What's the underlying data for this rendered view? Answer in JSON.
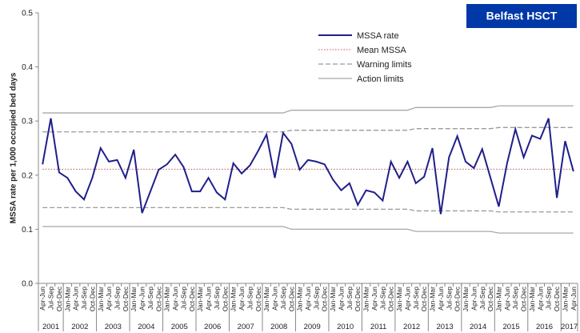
{
  "chart_data": {
    "type": "line",
    "badge": "Belfast HSCT",
    "y_label": "MSSA rate per 1,000 occupied bed days",
    "ylim": [
      0,
      0.5
    ],
    "yticks": [
      {
        "value": 0,
        "label": "0.0"
      },
      {
        "value": 0.1,
        "label": "0.1"
      },
      {
        "value": 0.2,
        "label": "0.2"
      },
      {
        "value": 0.3,
        "label": "0.3"
      },
      {
        "value": 0.4,
        "label": "0.4"
      },
      {
        "value": 0.5,
        "label": "0.5"
      }
    ],
    "categories": [
      "Apr-Jun",
      "Jul-Sep",
      "Oct-Dec",
      "Jan-Mar",
      "Apr-Jun",
      "Jul-Sep",
      "Oct-Dec",
      "Jan-Mar",
      "Apr-Jun",
      "Jul-Sep",
      "Oct-Dec",
      "Jan-Mar",
      "Apr-Jun",
      "Jul-Sep",
      "Oct-Dec",
      "Jan-Mar",
      "Apr-Jun",
      "Jul-Sep",
      "Oct-Dec",
      "Jan-Mar",
      "Apr-Jun",
      "Jul-Sep",
      "Oct-Dec",
      "Jan-Mar",
      "Apr-Jun",
      "Jul-Sep",
      "Oct-Dec",
      "Jan-Mar",
      "Apr-Jun",
      "Jul-Sep",
      "Oct-Dec",
      "Jan-Mar",
      "Apr-Jun",
      "Jul-Sep",
      "Oct-Dec",
      "Jan-Mar",
      "Apr-Jun",
      "Jul-Sep",
      "Oct-Dec",
      "Jan-Mar",
      "Apr-Jun",
      "Jul-Sep",
      "Oct-Dec",
      "Jan-Mar",
      "Apr-Jun",
      "Jul-Sep",
      "Oct-Dec",
      "Jan-Mar",
      "Apr-Jun",
      "Jul-Sep",
      "Oct-Dec",
      "Jan-Mar",
      "Apr-Jun",
      "Jul-Sep",
      "Oct-Dec",
      "Jan-Mar",
      "Apr-Jun",
      "Jul-Sep",
      "Oct-Dec",
      "Jan-Mar",
      "Apr-Jun",
      "Jul-Sep",
      "Oct-Dec",
      "Jan-Mar",
      "Apr-Jun"
    ],
    "years": [
      "2001",
      "2002",
      "2003",
      "2004",
      "2005",
      "2006",
      "2007",
      "2008",
      "2009",
      "2010",
      "2011",
      "2012",
      "2013",
      "2014",
      "2015",
      "2016",
      "2017"
    ],
    "series": [
      {
        "name": "MSSA rate",
        "color": "#1f1f8a",
        "dash": "solid",
        "width": 2,
        "values": [
          0.22,
          0.305,
          0.205,
          0.195,
          0.17,
          0.155,
          0.195,
          0.25,
          0.225,
          0.228,
          0.195,
          0.247,
          0.13,
          0.17,
          0.21,
          0.22,
          0.238,
          0.215,
          0.17,
          0.17,
          0.195,
          0.168,
          0.155,
          0.222,
          0.203,
          0.218,
          0.245,
          0.275,
          0.195,
          0.278,
          0.258,
          0.21,
          0.228,
          0.225,
          0.22,
          0.192,
          0.172,
          0.185,
          0.145,
          0.172,
          0.168,
          0.153,
          0.225,
          0.195,
          0.225,
          0.185,
          0.197,
          0.25,
          0.128,
          0.233,
          0.272,
          0.225,
          0.213,
          0.248,
          0.195,
          0.142,
          0.222,
          0.285,
          0.233,
          0.273,
          0.267,
          0.305,
          0.158,
          0.263,
          0.207
        ]
      },
      {
        "name": "Mean MSSA",
        "color": "#c0504d",
        "dash": "dotted",
        "width": 1,
        "values": [
          0.211,
          0.211,
          0.211,
          0.211,
          0.211,
          0.211,
          0.211,
          0.211,
          0.211,
          0.211,
          0.211,
          0.211,
          0.211,
          0.211,
          0.211,
          0.211,
          0.211,
          0.211,
          0.211,
          0.211,
          0.211,
          0.211,
          0.211,
          0.211,
          0.211,
          0.211,
          0.211,
          0.211,
          0.211,
          0.211,
          0.211,
          0.211,
          0.211,
          0.211,
          0.211,
          0.211,
          0.211,
          0.211,
          0.211,
          0.211,
          0.211,
          0.211,
          0.211,
          0.211,
          0.211,
          0.211,
          0.211,
          0.211,
          0.211,
          0.211,
          0.211,
          0.211,
          0.211,
          0.211,
          0.211,
          0.211,
          0.211,
          0.211,
          0.211,
          0.211,
          0.211,
          0.211,
          0.211,
          0.211,
          0.211
        ]
      },
      {
        "name": "Warning limits",
        "color": "#9a9a9a",
        "dash": "dashed",
        "width": 1.3,
        "values": [
          0.28,
          0.28,
          0.28,
          0.28,
          0.28,
          0.28,
          0.28,
          0.28,
          0.28,
          0.28,
          0.28,
          0.28,
          0.28,
          0.28,
          0.28,
          0.28,
          0.28,
          0.28,
          0.28,
          0.28,
          0.28,
          0.28,
          0.28,
          0.28,
          0.28,
          0.28,
          0.28,
          0.28,
          0.28,
          0.28,
          0.283,
          0.283,
          0.283,
          0.283,
          0.283,
          0.283,
          0.283,
          0.283,
          0.283,
          0.283,
          0.283,
          0.283,
          0.283,
          0.283,
          0.283,
          0.286,
          0.286,
          0.286,
          0.286,
          0.286,
          0.286,
          0.286,
          0.286,
          0.286,
          0.286,
          0.288,
          0.288,
          0.288,
          0.288,
          0.288,
          0.288,
          0.288,
          0.288,
          0.288,
          0.288
        ]
      },
      {
        "name": "Warning limits lower",
        "legend": false,
        "color": "#9a9a9a",
        "dash": "dashed",
        "width": 1.3,
        "values": [
          0.14,
          0.14,
          0.14,
          0.14,
          0.14,
          0.14,
          0.14,
          0.14,
          0.14,
          0.14,
          0.14,
          0.14,
          0.14,
          0.14,
          0.14,
          0.14,
          0.14,
          0.14,
          0.14,
          0.14,
          0.14,
          0.14,
          0.14,
          0.14,
          0.14,
          0.14,
          0.14,
          0.14,
          0.14,
          0.14,
          0.137,
          0.137,
          0.137,
          0.137,
          0.137,
          0.137,
          0.137,
          0.137,
          0.137,
          0.137,
          0.137,
          0.137,
          0.137,
          0.137,
          0.137,
          0.134,
          0.134,
          0.134,
          0.134,
          0.134,
          0.134,
          0.134,
          0.134,
          0.134,
          0.134,
          0.132,
          0.132,
          0.132,
          0.132,
          0.132,
          0.132,
          0.132,
          0.132,
          0.132,
          0.132
        ]
      },
      {
        "name": "Action limits",
        "color": "#a8a8a8",
        "dash": "solid",
        "width": 1.3,
        "values": [
          0.315,
          0.315,
          0.315,
          0.315,
          0.315,
          0.315,
          0.315,
          0.315,
          0.315,
          0.315,
          0.315,
          0.315,
          0.315,
          0.315,
          0.315,
          0.315,
          0.315,
          0.315,
          0.315,
          0.315,
          0.315,
          0.315,
          0.315,
          0.315,
          0.315,
          0.315,
          0.315,
          0.315,
          0.315,
          0.315,
          0.32,
          0.32,
          0.32,
          0.32,
          0.32,
          0.32,
          0.32,
          0.32,
          0.32,
          0.32,
          0.32,
          0.32,
          0.32,
          0.32,
          0.32,
          0.325,
          0.325,
          0.325,
          0.325,
          0.325,
          0.325,
          0.325,
          0.325,
          0.325,
          0.325,
          0.328,
          0.328,
          0.328,
          0.328,
          0.328,
          0.328,
          0.328,
          0.328,
          0.328,
          0.328
        ]
      },
      {
        "name": "Action limits lower",
        "legend": false,
        "color": "#a8a8a8",
        "dash": "solid",
        "width": 1.3,
        "values": [
          0.105,
          0.105,
          0.105,
          0.105,
          0.105,
          0.105,
          0.105,
          0.105,
          0.105,
          0.105,
          0.105,
          0.105,
          0.105,
          0.105,
          0.105,
          0.105,
          0.105,
          0.105,
          0.105,
          0.105,
          0.105,
          0.105,
          0.105,
          0.105,
          0.105,
          0.105,
          0.105,
          0.105,
          0.105,
          0.105,
          0.1,
          0.1,
          0.1,
          0.1,
          0.1,
          0.1,
          0.1,
          0.1,
          0.1,
          0.1,
          0.1,
          0.1,
          0.1,
          0.1,
          0.1,
          0.096,
          0.096,
          0.096,
          0.096,
          0.096,
          0.096,
          0.096,
          0.096,
          0.096,
          0.096,
          0.093,
          0.093,
          0.093,
          0.093,
          0.093,
          0.093,
          0.093,
          0.093,
          0.093,
          0.093
        ]
      }
    ]
  }
}
